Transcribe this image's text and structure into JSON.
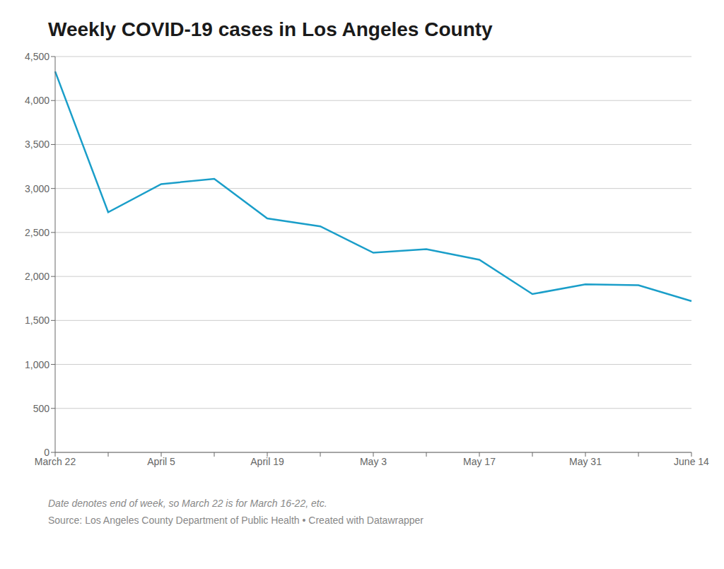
{
  "chart_data": {
    "type": "line",
    "title": "Weekly COVID-19 cases in Los Angeles County",
    "categories": [
      "March 22",
      null,
      "April 5",
      null,
      "April 19",
      null,
      "May 3",
      null,
      "May 17",
      null,
      "May 31",
      null,
      "June 14"
    ],
    "values": [
      4330,
      2730,
      3050,
      3110,
      2660,
      2570,
      2270,
      2310,
      2190,
      1800,
      1910,
      1900,
      1720
    ],
    "color": "#1a9ec9",
    "ylim": [
      0,
      4500
    ],
    "yticks": [
      0,
      500,
      {
        "value": 1000,
        "label": "1,000"
      },
      {
        "value": 1500,
        "label": "1,500"
      },
      {
        "value": 2000,
        "label": "2,000"
      },
      {
        "value": 2500,
        "label": "2,500"
      },
      {
        "value": 3000,
        "label": "3,000"
      },
      {
        "value": 3500,
        "label": "3,500"
      },
      {
        "value": 4000,
        "label": "4,000"
      },
      {
        "value": 4500,
        "label": "4,500"
      }
    ],
    "grid": true,
    "annotations": [
      "Date denotes end of week, so March 22 is for March 16-22, etc.",
      "Source: Los Angeles County Department of Public Health • Created with Datawrapper"
    ]
  }
}
